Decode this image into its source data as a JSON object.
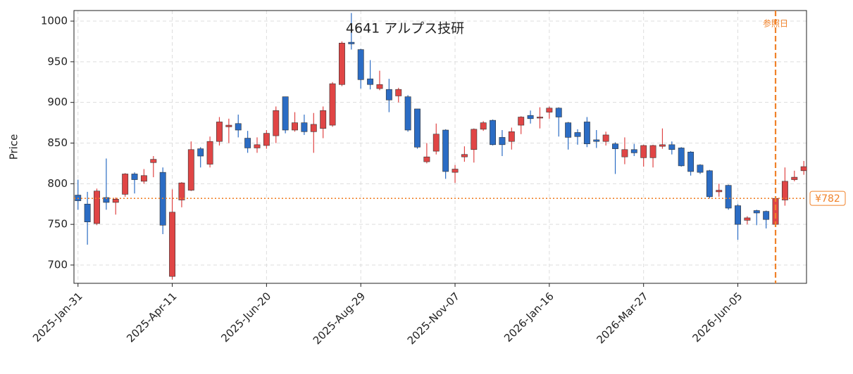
{
  "chart_data": {
    "type": "candlestick",
    "title": "4641 アルプス技研",
    "y_label": "Price",
    "x": [
      "2025-01-31",
      "2025-02-07",
      "2025-02-14",
      "2025-02-21",
      "2025-02-28",
      "2025-03-07",
      "2025-03-14",
      "2025-03-21",
      "2025-03-28",
      "2025-04-04",
      "2025-04-11",
      "2025-04-18",
      "2025-04-25",
      "2025-05-02",
      "2025-05-09",
      "2025-05-16",
      "2025-05-23",
      "2025-05-30",
      "2025-06-06",
      "2025-06-13",
      "2025-06-20",
      "2025-06-27",
      "2025-07-04",
      "2025-07-11",
      "2025-07-18",
      "2025-07-25",
      "2025-08-01",
      "2025-08-08",
      "2025-08-15",
      "2025-08-22",
      "2025-08-29",
      "2025-09-05",
      "2025-09-12",
      "2025-09-19",
      "2025-09-26",
      "2025-10-03",
      "2025-10-10",
      "2025-10-17",
      "2025-10-24",
      "2025-10-31",
      "2025-11-07",
      "2025-11-14",
      "2025-11-21",
      "2025-11-28",
      "2025-12-05",
      "2025-12-12",
      "2025-12-19",
      "2025-12-26",
      "2026-01-02",
      "2026-01-09",
      "2026-01-16",
      "2026-01-23",
      "2026-01-30",
      "2026-02-06",
      "2026-02-13",
      "2026-02-20",
      "2026-02-27",
      "2026-03-06",
      "2026-03-13",
      "2026-03-20",
      "2026-03-27",
      "2026-04-03",
      "2026-04-10",
      "2026-04-17",
      "2026-04-24",
      "2026-05-01",
      "2026-05-08",
      "2026-05-15",
      "2026-05-22",
      "2026-05-29",
      "2026-06-05",
      "2026-06-12",
      "2026-06-19",
      "2026-06-26",
      "2026-07-03",
      "2026-07-10",
      "2026-07-17",
      "2026-07-24"
    ],
    "open": [
      786,
      775,
      751,
      783,
      777,
      787,
      812,
      803,
      826,
      814,
      686,
      780,
      792,
      843,
      824,
      852,
      870,
      874,
      856,
      844,
      847,
      859,
      907,
      866,
      875,
      864,
      868,
      872,
      922,
      974,
      965,
      929,
      917,
      916,
      908,
      907,
      892,
      827,
      840,
      866,
      814,
      833,
      842,
      867,
      878,
      857,
      852,
      872,
      884,
      881,
      888,
      893,
      875,
      863,
      876,
      854,
      852,
      849,
      833,
      842,
      832,
      832,
      846,
      848,
      844,
      839,
      823,
      816,
      790,
      798,
      773,
      755,
      767,
      766,
      750,
      780,
      805,
      816
    ],
    "high": [
      805,
      790,
      794,
      831,
      783,
      813,
      814,
      818,
      834,
      820,
      793,
      802,
      852,
      845,
      858,
      882,
      880,
      885,
      865,
      857,
      866,
      895,
      907,
      888,
      885,
      887,
      895,
      925,
      975,
      1010,
      966,
      952,
      939,
      929,
      918,
      909,
      892,
      850,
      874,
      867,
      823,
      846,
      868,
      877,
      879,
      866,
      869,
      883,
      890,
      894,
      895,
      894,
      876,
      867,
      882,
      866,
      864,
      851,
      857,
      849,
      848,
      848,
      868,
      852,
      845,
      840,
      824,
      817,
      800,
      799,
      775,
      760,
      768,
      767,
      781,
      820,
      816,
      828
    ],
    "low": [
      768,
      725,
      749,
      768,
      762,
      784,
      788,
      800,
      808,
      738,
      682,
      771,
      791,
      820,
      820,
      847,
      850,
      857,
      838,
      838,
      843,
      850,
      862,
      864,
      860,
      838,
      856,
      870,
      920,
      965,
      917,
      916,
      915,
      888,
      900,
      864,
      843,
      825,
      836,
      806,
      801,
      827,
      826,
      865,
      847,
      834,
      842,
      861,
      874,
      868,
      880,
      858,
      842,
      848,
      845,
      844,
      847,
      812,
      824,
      834,
      821,
      820,
      843,
      836,
      821,
      810,
      812,
      782,
      784,
      768,
      731,
      750,
      749,
      745,
      749,
      773,
      803,
      811
    ],
    "close": [
      779,
      753,
      791,
      777,
      781,
      812,
      805,
      810,
      830,
      749,
      765,
      801,
      842,
      834,
      852,
      876,
      872,
      866,
      844,
      848,
      862,
      890,
      866,
      875,
      864,
      873,
      890,
      923,
      973,
      972,
      928,
      922,
      922,
      903,
      916,
      866,
      845,
      833,
      861,
      815,
      818,
      836,
      867,
      875,
      848,
      848,
      864,
      882,
      880,
      882,
      893,
      882,
      857,
      858,
      849,
      852,
      860,
      843,
      842,
      838,
      847,
      847,
      848,
      842,
      822,
      815,
      814,
      784,
      792,
      770,
      750,
      758,
      764,
      756,
      782,
      803,
      808,
      821
    ],
    "up_color": "#e04545",
    "down_color": "#2b6cc4",
    "ylim": [
      677.5,
      1013
    ],
    "yticks": [
      700,
      750,
      800,
      850,
      900,
      950,
      1000
    ],
    "xlim": [
      "2025-01-28",
      "2026-07-26"
    ],
    "xticks": [
      {
        "value": "2025-01-31",
        "label": "2025-Jan-31"
      },
      {
        "value": "2025-04-11",
        "label": "2025-Apr-11"
      },
      {
        "value": "2025-06-20",
        "label": "2025-Jun-20"
      },
      {
        "value": "2025-08-29",
        "label": "2025-Aug-29"
      },
      {
        "value": "2025-11-07",
        "label": "2025-Nov-07"
      },
      {
        "value": "2026-01-16",
        "label": "2026-Jan-16"
      },
      {
        "value": "2026-03-27",
        "label": "2026-Mar-27"
      },
      {
        "value": "2026-06-05",
        "label": "2026-Jun-05"
      }
    ],
    "grid": true,
    "reference_date": "2026-07-03",
    "reference_date_label": "参照日",
    "reference_price": 782,
    "reference_price_label": "¥782",
    "reference_color": "#f0822a"
  }
}
